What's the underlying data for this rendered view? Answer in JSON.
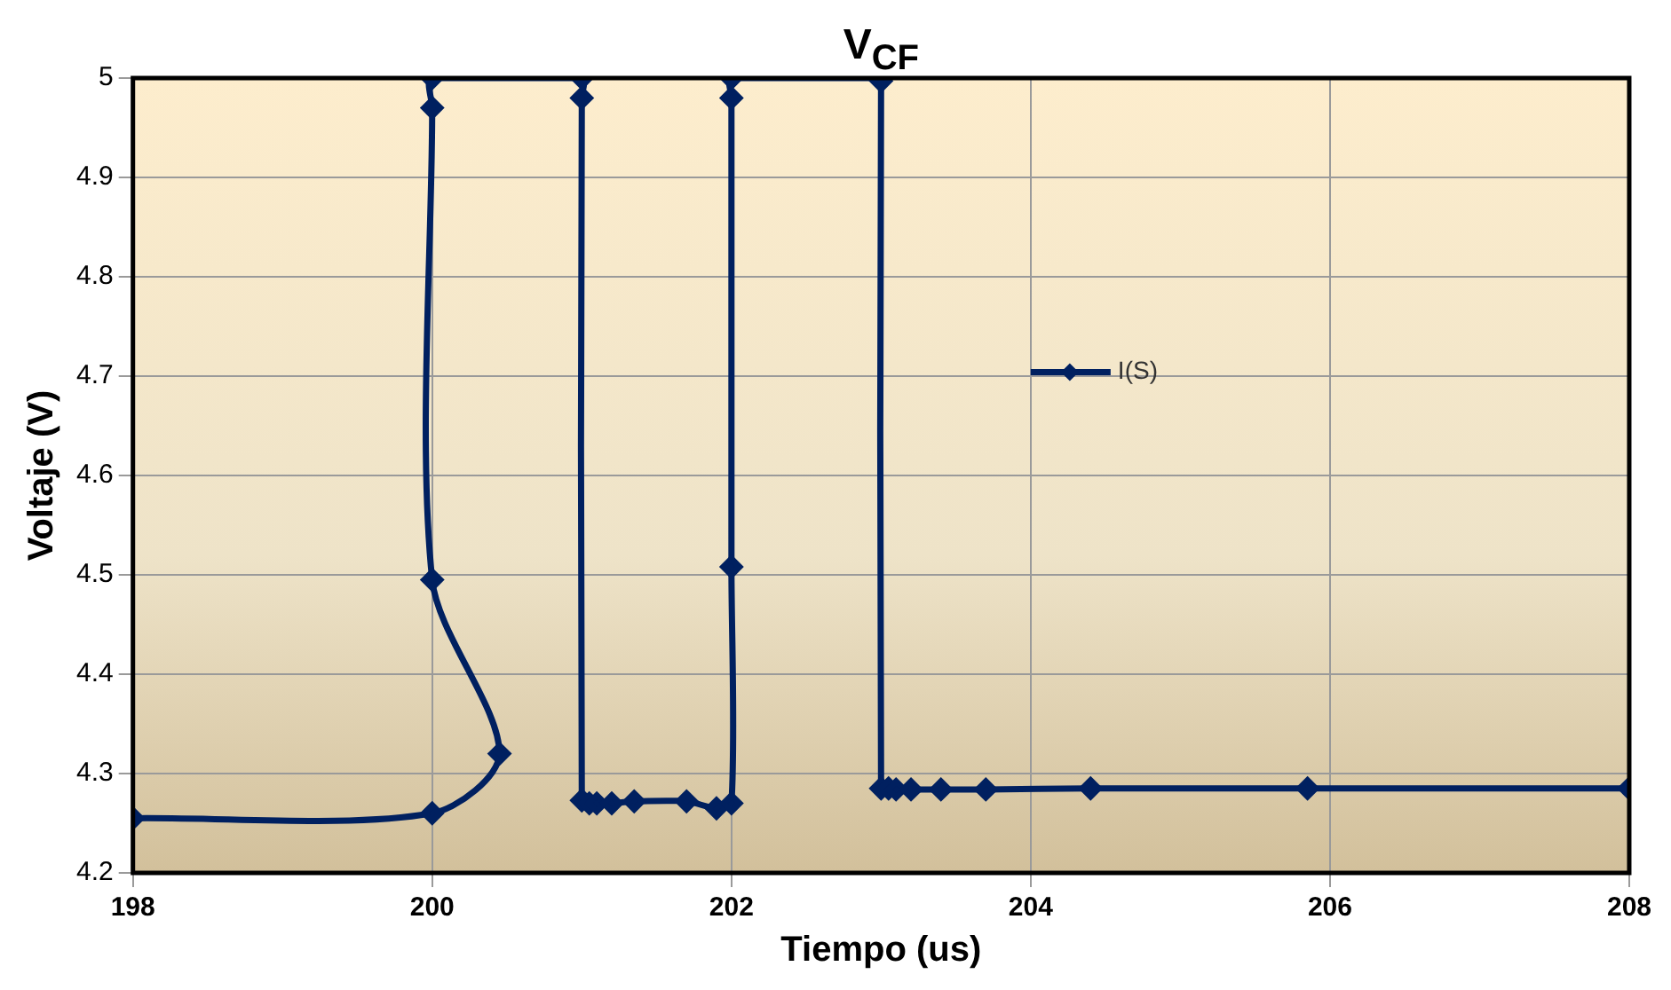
{
  "chart_data": {
    "type": "line",
    "title": "V$_{CF}$",
    "xlabel": "Tiempo (us)",
    "ylabel": "Voltaje (V)",
    "xlim": [
      198,
      208
    ],
    "xticks": [
      198,
      200,
      202,
      204,
      206,
      208
    ],
    "ylim": [
      4.2,
      5
    ],
    "yticks": [
      4.2,
      4.3,
      4.4,
      4.5,
      4.6,
      4.7,
      4.8,
      4.9,
      5
    ],
    "grid": true,
    "legend": "right",
    "marker": "diamond",
    "line_style": "solid",
    "series": [
      {
        "name": "I(S)",
        "color": "#002060",
        "x": [
          198,
          200,
          200.45,
          200,
          200,
          200,
          201,
          201,
          201,
          201.05,
          201.1,
          201.2,
          201.35,
          201.7,
          201.9,
          202,
          202,
          202,
          202,
          203,
          203,
          203,
          203.05,
          203.1,
          203.2,
          203.4,
          203.7,
          204.4,
          205.85,
          208
        ],
        "values": [
          4.255,
          4.26,
          4.32,
          4.495,
          4.97,
          5,
          5,
          4.98,
          4.273,
          4.27,
          4.27,
          4.27,
          4.272,
          4.272,
          4.265,
          4.27,
          4.508,
          4.98,
          5,
          5,
          4.997,
          4.285,
          4.285,
          4.284,
          4.284,
          4.284,
          4.284,
          4.285,
          4.285,
          4.285
        ]
      }
    ]
  }
}
